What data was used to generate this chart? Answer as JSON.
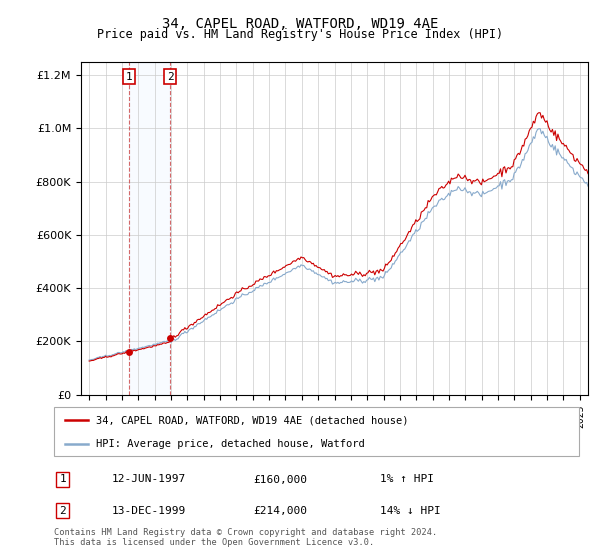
{
  "title": "34, CAPEL ROAD, WATFORD, WD19 4AE",
  "subtitle": "Price paid vs. HM Land Registry's House Price Index (HPI)",
  "legend_line1": "34, CAPEL ROAD, WATFORD, WD19 4AE (detached house)",
  "legend_line2": "HPI: Average price, detached house, Watford",
  "transaction1_date": "12-JUN-1997",
  "transaction1_price": "£160,000",
  "transaction1_hpi": "1% ↑ HPI",
  "transaction1_year": 1997.45,
  "transaction1_value": 160000,
  "transaction2_date": "13-DEC-1999",
  "transaction2_price": "£214,000",
  "transaction2_hpi": "14% ↓ HPI",
  "transaction2_year": 1999.96,
  "transaction2_value": 214000,
  "footer": "Contains HM Land Registry data © Crown copyright and database right 2024.\nThis data is licensed under the Open Government Licence v3.0.",
  "line_color_red": "#cc0000",
  "line_color_blue": "#88aacc",
  "marker_color": "#cc0000",
  "box_shade": "#ddeeff",
  "ylim": [
    0,
    1250000
  ],
  "yticks": [
    0,
    200000,
    400000,
    600000,
    800000,
    1000000,
    1200000
  ],
  "xlim_start": 1994.5,
  "xlim_end": 2025.5
}
